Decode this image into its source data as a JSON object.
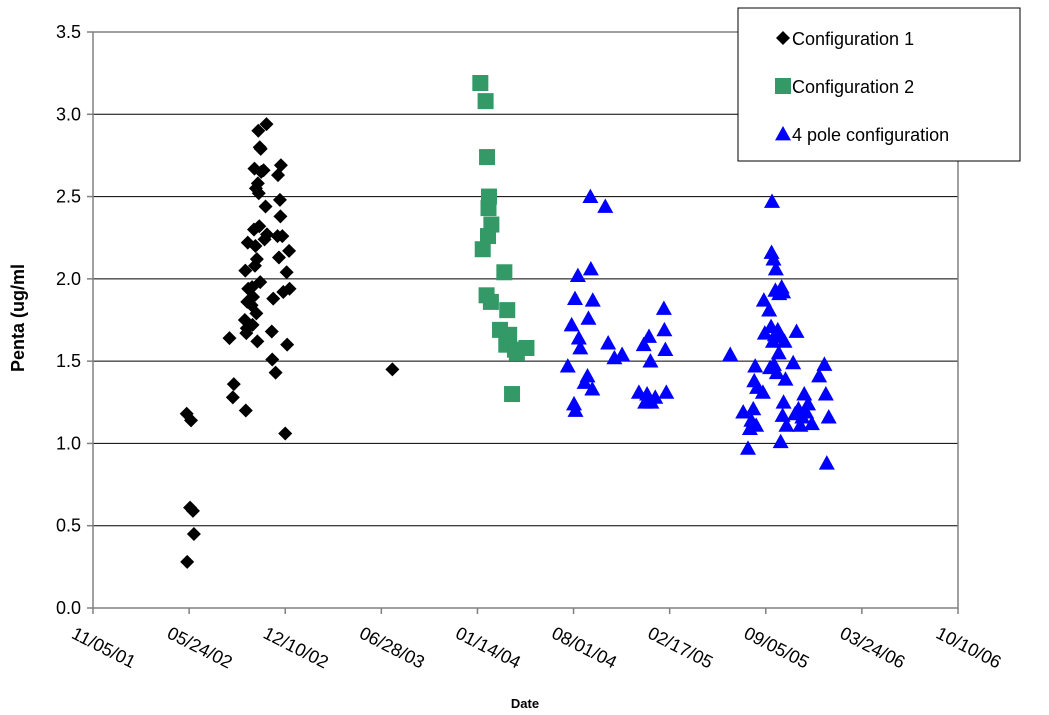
{
  "chart_data": {
    "type": "scatter",
    "title": "",
    "xlabel": "Date",
    "ylabel": "Penta (ug/ml",
    "ylim": [
      0.0,
      3.5
    ],
    "y_ticks": [
      "0.0",
      "0.5",
      "1.0",
      "1.5",
      "2.0",
      "2.5",
      "3.0",
      "3.5"
    ],
    "xlim": [
      "2001-11-05",
      "2006-10-10"
    ],
    "x_ticks": [
      "11/05/01",
      "05/24/02",
      "12/10/02",
      "06/28/03",
      "01/14/04",
      "08/01/04",
      "02/17/05",
      "09/05/05",
      "03/24/06",
      "10/10/06"
    ],
    "grid": "horizontal",
    "legend_position": "top-right",
    "series": [
      {
        "name": "Configuration 1",
        "color": "#000000",
        "marker": "diamond",
        "points": [
          [
            "2002-05-19",
            1.18
          ],
          [
            "2002-05-20",
            0.28
          ],
          [
            "2002-05-26",
            0.61
          ],
          [
            "2002-05-28",
            1.14
          ],
          [
            "2002-06-01",
            0.59
          ],
          [
            "2002-06-03",
            0.45
          ],
          [
            "2002-08-16",
            1.64
          ],
          [
            "2002-08-23",
            1.28
          ],
          [
            "2002-08-25",
            1.36
          ],
          [
            "2002-09-17",
            1.75
          ],
          [
            "2002-09-18",
            2.05
          ],
          [
            "2002-09-19",
            1.2
          ],
          [
            "2002-09-20",
            1.67
          ],
          [
            "2002-09-21",
            1.7
          ],
          [
            "2002-09-22",
            1.86
          ],
          [
            "2002-09-23",
            2.22
          ],
          [
            "2002-09-24",
            1.94
          ],
          [
            "2002-10-01",
            1.84
          ],
          [
            "2002-10-02",
            1.95
          ],
          [
            "2002-10-03",
            1.72
          ],
          [
            "2002-10-04",
            1.89
          ],
          [
            "2002-10-06",
            2.3
          ],
          [
            "2002-10-07",
            2.67
          ],
          [
            "2002-10-08",
            2.08
          ],
          [
            "2002-10-09",
            2.2
          ],
          [
            "2002-10-10",
            2.55
          ],
          [
            "2002-10-11",
            1.79
          ],
          [
            "2002-10-12",
            2.12
          ],
          [
            "2002-10-13",
            1.62
          ],
          [
            "2002-10-14",
            2.58
          ],
          [
            "2002-10-15",
            2.9
          ],
          [
            "2002-10-16",
            2.52
          ],
          [
            "2002-10-17",
            2.32
          ],
          [
            "2002-10-18",
            2.8
          ],
          [
            "2002-10-19",
            1.98
          ],
          [
            "2002-10-20",
            2.79
          ],
          [
            "2002-10-21",
            2.65
          ],
          [
            "2002-10-26",
            2.66
          ],
          [
            "2002-10-28",
            2.24
          ],
          [
            "2002-10-30",
            2.44
          ],
          [
            "2002-11-01",
            2.94
          ],
          [
            "2002-11-02",
            2.27
          ],
          [
            "2002-11-12",
            1.68
          ],
          [
            "2002-11-13",
            1.51
          ],
          [
            "2002-11-15",
            1.88
          ],
          [
            "2002-11-20",
            1.43
          ],
          [
            "2002-11-24",
            2.26
          ],
          [
            "2002-11-25",
            2.63
          ],
          [
            "2002-11-27",
            2.13
          ],
          [
            "2002-11-29",
            2.48
          ],
          [
            "2002-11-30",
            2.38
          ],
          [
            "2002-12-01",
            2.69
          ],
          [
            "2002-12-04",
            2.26
          ],
          [
            "2002-12-06",
            1.92
          ],
          [
            "2002-12-10",
            1.06
          ],
          [
            "2002-12-14",
            1.6
          ],
          [
            "2002-12-13",
            2.04
          ],
          [
            "2002-12-18",
            2.17
          ],
          [
            "2002-12-19",
            1.94
          ],
          [
            "2003-07-21",
            1.45
          ]
        ]
      },
      {
        "name": "Configuration 2",
        "color": "#339966",
        "marker": "square",
        "points": [
          [
            "2004-01-20",
            3.19
          ],
          [
            "2004-01-25",
            2.18
          ],
          [
            "2004-01-31",
            3.08
          ],
          [
            "2004-02-02",
            1.9
          ],
          [
            "2004-02-03",
            2.74
          ],
          [
            "2004-02-05",
            2.26
          ],
          [
            "2004-02-06",
            2.43
          ],
          [
            "2004-02-07",
            2.5
          ],
          [
            "2004-02-12",
            2.33
          ],
          [
            "2004-02-11",
            1.86
          ],
          [
            "2004-03-01",
            1.69
          ],
          [
            "2004-03-10",
            2.04
          ],
          [
            "2004-03-14",
            1.6
          ],
          [
            "2004-03-16",
            1.81
          ],
          [
            "2004-03-20",
            1.66
          ],
          [
            "2004-03-26",
            1.3
          ],
          [
            "2004-04-01",
            1.57
          ],
          [
            "2004-04-05",
            1.55
          ],
          [
            "2004-04-25",
            1.58
          ]
        ]
      },
      {
        "name": "4 pole configuration",
        "color": "#0000ff",
        "marker": "triangle",
        "points": [
          [
            "2004-07-20",
            1.47
          ],
          [
            "2004-07-28",
            1.72
          ],
          [
            "2004-08-02",
            1.24
          ],
          [
            "2004-08-04",
            1.88
          ],
          [
            "2004-08-05",
            1.2
          ],
          [
            "2004-08-10",
            2.02
          ],
          [
            "2004-08-12",
            1.64
          ],
          [
            "2004-08-15",
            1.58
          ],
          [
            "2004-08-24",
            1.37
          ],
          [
            "2004-08-30",
            1.41
          ],
          [
            "2004-09-01",
            1.76
          ],
          [
            "2004-09-05",
            2.5
          ],
          [
            "2004-09-06",
            2.06
          ],
          [
            "2004-09-10",
            1.87
          ],
          [
            "2004-09-09",
            1.33
          ],
          [
            "2004-10-06",
            2.44
          ],
          [
            "2004-10-12",
            1.61
          ],
          [
            "2004-10-25",
            1.52
          ],
          [
            "2004-11-10",
            1.54
          ],
          [
            "2004-12-15",
            1.31
          ],
          [
            "2004-12-25",
            1.6
          ],
          [
            "2004-12-28",
            1.25
          ],
          [
            "2005-01-01",
            1.3
          ],
          [
            "2005-01-05",
            1.65
          ],
          [
            "2005-01-08",
            1.5
          ],
          [
            "2005-01-10",
            1.25
          ],
          [
            "2005-01-18",
            1.28
          ],
          [
            "2005-02-05",
            1.82
          ],
          [
            "2005-02-06",
            1.69
          ],
          [
            "2005-02-08",
            1.57
          ],
          [
            "2005-02-10",
            1.31
          ],
          [
            "2005-06-23",
            1.54
          ],
          [
            "2005-07-20",
            1.19
          ],
          [
            "2005-07-30",
            0.97
          ],
          [
            "2005-08-03",
            1.09
          ],
          [
            "2005-08-06",
            1.14
          ],
          [
            "2005-08-10",
            1.21
          ],
          [
            "2005-08-12",
            1.38
          ],
          [
            "2005-08-14",
            1.47
          ],
          [
            "2005-08-16",
            1.11
          ],
          [
            "2005-08-18",
            1.34
          ],
          [
            "2005-08-30",
            1.31
          ],
          [
            "2005-09-01",
            1.87
          ],
          [
            "2005-09-03",
            1.67
          ],
          [
            "2005-09-12",
            1.81
          ],
          [
            "2005-09-14",
            1.46
          ],
          [
            "2005-09-16",
            1.71
          ],
          [
            "2005-09-17",
            2.16
          ],
          [
            "2005-09-18",
            2.47
          ],
          [
            "2005-09-20",
            1.62
          ],
          [
            "2005-09-21",
            2.12
          ],
          [
            "2005-09-22",
            1.48
          ],
          [
            "2005-09-24",
            1.66
          ],
          [
            "2005-09-25",
            1.93
          ],
          [
            "2005-09-26",
            2.06
          ],
          [
            "2005-09-28",
            1.43
          ],
          [
            "2005-09-30",
            1.69
          ],
          [
            "2005-10-02",
            1.55
          ],
          [
            "2005-10-03",
            1.91
          ],
          [
            "2005-10-05",
            1.65
          ],
          [
            "2005-10-06",
            1.01
          ],
          [
            "2005-10-08",
            1.95
          ],
          [
            "2005-10-10",
            1.17
          ],
          [
            "2005-10-11",
            1.92
          ],
          [
            "2005-10-12",
            1.25
          ],
          [
            "2005-10-14",
            1.62
          ],
          [
            "2005-10-16",
            1.39
          ],
          [
            "2005-10-18",
            1.11
          ],
          [
            "2005-11-01",
            1.49
          ],
          [
            "2005-11-05",
            1.18
          ],
          [
            "2005-11-08",
            1.68
          ],
          [
            "2005-11-12",
            1.21
          ],
          [
            "2005-11-16",
            1.11
          ],
          [
            "2005-11-20",
            1.16
          ],
          [
            "2005-11-24",
            1.3
          ],
          [
            "2005-11-28",
            1.19
          ],
          [
            "2005-12-02",
            1.24
          ],
          [
            "2005-12-10",
            1.12
          ],
          [
            "2005-12-25",
            1.41
          ],
          [
            "2006-01-05",
            1.48
          ],
          [
            "2006-01-08",
            1.3
          ],
          [
            "2006-01-10",
            0.88
          ],
          [
            "2006-01-14",
            1.16
          ]
        ]
      }
    ]
  }
}
